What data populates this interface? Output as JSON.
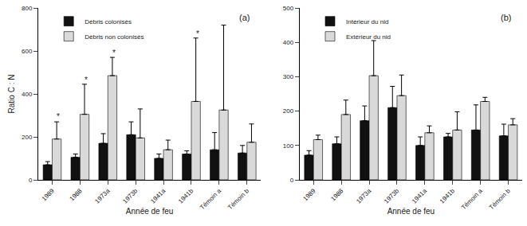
{
  "chart_data": [
    {
      "type": "bar",
      "title": "(a)",
      "categories": [
        "1989",
        "1988",
        "1973a",
        "1973b",
        "1941a",
        "1941b",
        "Témoin a",
        "Témoin b"
      ],
      "x_label": "Année de feu",
      "y_label": "Ratio C : N",
      "ylim": [
        0,
        800
      ],
      "yticks": [
        0,
        200,
        400,
        600,
        800
      ],
      "grid": false,
      "legend": "upper left",
      "series": [
        {
          "name": "Débris colonisés",
          "color": "#111111",
          "values": [
            70,
            105,
            170,
            210,
            100,
            120,
            140,
            125
          ],
          "errors": [
            15,
            15,
            45,
            60,
            20,
            15,
            80,
            35
          ]
        },
        {
          "name": "Débris non colonisés",
          "color": "#d9d9d9",
          "values": [
            190,
            305,
            485,
            195,
            140,
            365,
            325,
            175
          ],
          "errors": [
            80,
            140,
            85,
            135,
            45,
            295,
            395,
            85
          ]
        }
      ],
      "annotations": [
        {
          "category": "1989",
          "y": 295,
          "text": "*"
        },
        {
          "category": "1988",
          "y": 465,
          "text": "*"
        },
        {
          "category": "1973a",
          "y": 590,
          "text": "*"
        },
        {
          "category": "1941b",
          "y": 680,
          "text": "*"
        }
      ]
    },
    {
      "type": "bar",
      "title": "(b)",
      "categories": [
        "1989",
        "1988",
        "1973a",
        "1973b",
        "1941a",
        "1941b",
        "Témoin a",
        "Témoin b"
      ],
      "x_label": "Année de feu",
      "ylim": [
        0,
        500
      ],
      "yticks": [
        0,
        100,
        200,
        300,
        400,
        500
      ],
      "grid": false,
      "legend": "upper left",
      "series": [
        {
          "name": "Intérieur du nid",
          "color": "#111111",
          "values": [
            72,
            105,
            172,
            210,
            100,
            125,
            145,
            128
          ],
          "errors": [
            13,
            20,
            43,
            62,
            25,
            10,
            73,
            34
          ]
        },
        {
          "name": "Extérieur du nid",
          "color": "#d9d9d9",
          "values": [
            117,
            190,
            303,
            245,
            137,
            145,
            228,
            160
          ],
          "errors": [
            13,
            42,
            102,
            60,
            20,
            53,
            12,
            18
          ]
        }
      ]
    }
  ]
}
